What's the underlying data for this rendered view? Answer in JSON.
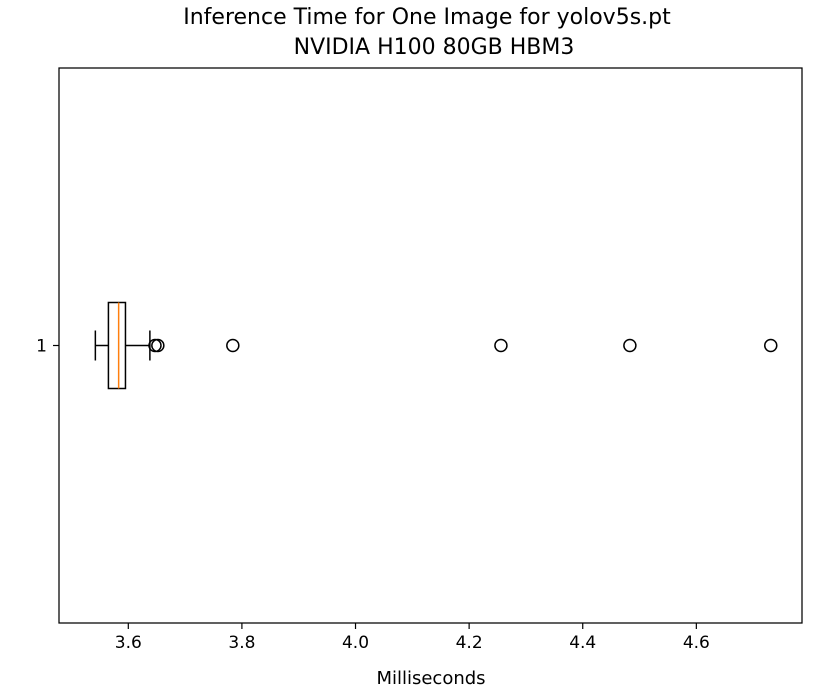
{
  "chart_data": {
    "type": "boxplot",
    "orientation": "horizontal",
    "title": "Inference Time for One Image for yolov5s.pt",
    "subtitle": "NVIDIA H100 80GB HBM3",
    "xlabel": "Milliseconds",
    "ylabel": "",
    "xlim": [
      3.478,
      4.786
    ],
    "x_ticks": [
      3.6,
      3.8,
      4.0,
      4.2,
      4.4,
      4.6
    ],
    "x_tick_labels": [
      "3.6",
      "3.8",
      "4.0",
      "4.2",
      "4.4",
      "4.6"
    ],
    "y_tick_labels": [
      "1"
    ],
    "grid": false,
    "legend": "none",
    "colors": {
      "median": "#ff7f0e",
      "box": "#000000"
    },
    "boxes": [
      {
        "label": "1",
        "whisker_low": 3.542,
        "q1": 3.565,
        "median": 3.583,
        "q3": 3.595,
        "whisker_high": 3.638,
        "outliers": [
          3.647,
          3.652,
          3.784,
          4.256,
          4.483,
          4.731
        ]
      }
    ]
  }
}
